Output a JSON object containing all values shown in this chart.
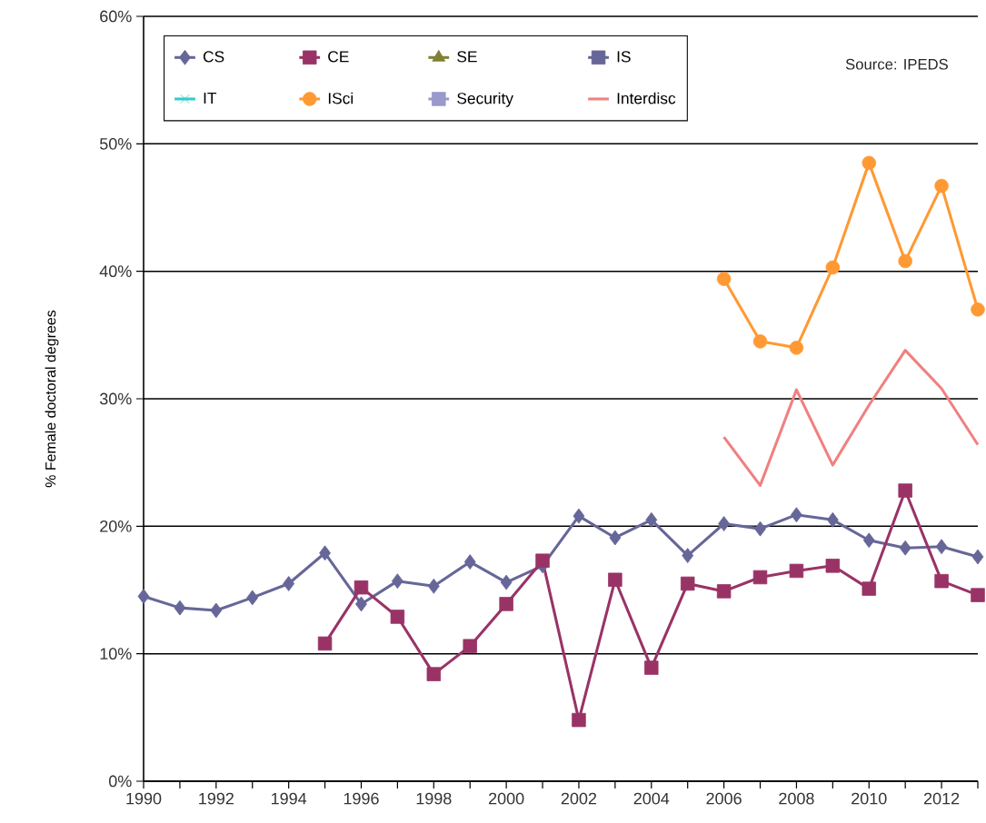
{
  "chart_data": {
    "type": "line",
    "ylabel": "% Female doctoral degrees",
    "x": [
      1990,
      1991,
      1992,
      1993,
      1994,
      1995,
      1996,
      1997,
      1998,
      1999,
      2000,
      2001,
      2002,
      2003,
      2004,
      2005,
      2006,
      2007,
      2008,
      2009,
      2010,
      2011,
      2012,
      2013
    ],
    "series": [
      {
        "name": "CS",
        "color": "#666699",
        "marker": "diamond",
        "values": [
          14.5,
          13.6,
          13.4,
          14.4,
          15.5,
          17.9,
          13.9,
          15.7,
          15.3,
          17.2,
          15.6,
          16.9,
          20.8,
          19.1,
          20.5,
          17.7,
          20.2,
          19.8,
          20.9,
          20.5,
          18.9,
          18.3,
          18.4,
          17.6
        ]
      },
      {
        "name": "CE",
        "color": "#993366",
        "marker": "square",
        "values": [
          null,
          null,
          null,
          null,
          null,
          10.8,
          15.2,
          12.9,
          8.4,
          10.6,
          13.9,
          17.3,
          4.8,
          15.8,
          8.9,
          15.5,
          14.9,
          16.0,
          16.5,
          16.9,
          15.1,
          22.8,
          15.7,
          14.6
        ]
      },
      {
        "name": "SE",
        "color": "#808033",
        "marker": "triangle",
        "values": [
          null,
          null,
          null,
          null,
          null,
          null,
          null,
          null,
          null,
          null,
          null,
          null,
          null,
          null,
          null,
          null,
          null,
          null,
          null,
          null,
          null,
          null,
          null,
          null
        ]
      },
      {
        "name": "IS",
        "color": "#666699",
        "marker": "square",
        "values": [
          null,
          null,
          null,
          null,
          null,
          null,
          null,
          null,
          null,
          null,
          null,
          null,
          null,
          null,
          null,
          null,
          null,
          null,
          null,
          null,
          null,
          null,
          null,
          null
        ]
      },
      {
        "name": "IT",
        "color": "#33cccc",
        "marker": "cross",
        "values": [
          null,
          null,
          null,
          null,
          null,
          null,
          null,
          null,
          null,
          null,
          null,
          null,
          null,
          null,
          null,
          null,
          null,
          null,
          null,
          null,
          null,
          null,
          null,
          null
        ]
      },
      {
        "name": "ISci",
        "color": "#ff9933",
        "marker": "circle",
        "values": [
          null,
          null,
          null,
          null,
          null,
          null,
          null,
          null,
          null,
          null,
          null,
          null,
          null,
          null,
          null,
          null,
          39.4,
          34.5,
          34.0,
          40.3,
          48.5,
          40.8,
          46.7,
          37.0
        ]
      },
      {
        "name": "Security",
        "color": "#9999cc",
        "marker": "square",
        "values": [
          null,
          null,
          null,
          null,
          null,
          null,
          null,
          null,
          null,
          null,
          null,
          null,
          null,
          null,
          null,
          null,
          null,
          null,
          null,
          null,
          null,
          null,
          null,
          null
        ]
      },
      {
        "name": "Interdisc",
        "color": "#f08080",
        "marker": "none",
        "values": [
          null,
          null,
          null,
          null,
          null,
          null,
          null,
          null,
          null,
          null,
          null,
          null,
          null,
          null,
          null,
          null,
          27.0,
          23.2,
          30.7,
          24.8,
          29.5,
          33.8,
          30.8,
          26.4
        ]
      }
    ],
    "xlim": [
      1990,
      2013
    ],
    "xticks": [
      1990,
      {
        "value": 1991,
        "label": null
      },
      1992,
      {
        "value": 1993,
        "label": null
      },
      1994,
      {
        "value": 1995,
        "label": null
      },
      1996,
      {
        "value": 1997,
        "label": null
      },
      1998,
      {
        "value": 1999,
        "label": null
      },
      2000,
      {
        "value": 2001,
        "label": null
      },
      2002,
      {
        "value": 2003,
        "label": null
      },
      2004,
      {
        "value": 2005,
        "label": null
      },
      2006,
      {
        "value": 2007,
        "label": null
      },
      2008,
      {
        "value": 2009,
        "label": null
      },
      2010,
      {
        "value": 2011,
        "label": null
      },
      2012,
      {
        "value": 2013,
        "label": null
      }
    ],
    "ylim": [
      0,
      60
    ],
    "yticks": [
      {
        "value": 0,
        "label": "0%"
      },
      {
        "value": 10,
        "label": "10%"
      },
      {
        "value": 20,
        "label": "20%"
      },
      {
        "value": 30,
        "label": "30%"
      },
      {
        "value": 40,
        "label": "40%"
      },
      {
        "value": 50,
        "label": "50%"
      },
      {
        "value": 60,
        "label": "60%"
      }
    ],
    "grid": "y",
    "legend": "top left",
    "line_style": "solid",
    "annotations": [
      "Source: IPEDS"
    ]
  }
}
